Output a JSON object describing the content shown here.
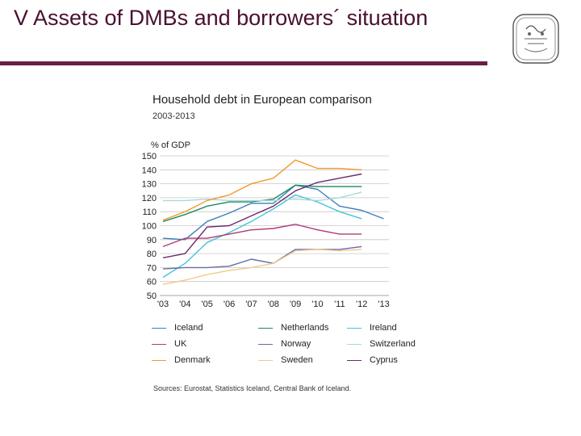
{
  "slide": {
    "title": "V Assets of DMBs and borrowers´ situation"
  },
  "chart_data": {
    "type": "line",
    "title": "Household debt in European comparison",
    "subtitle": "2003-2013",
    "ylabel": "% of GDP",
    "xlabel": "",
    "x": [
      "'03",
      "'04",
      "'05",
      "'06",
      "'07",
      "'08",
      "'09",
      "'10",
      "'11",
      "'12",
      "'13"
    ],
    "yticks": [
      50,
      60,
      70,
      80,
      90,
      100,
      110,
      120,
      130,
      140,
      150
    ],
    "ylim": [
      50,
      150
    ],
    "grid": true,
    "legend_position": "bottom",
    "series": [
      {
        "name": "Iceland",
        "color": "#3f7fb8",
        "values": [
          91,
          90,
          103,
          109,
          116,
          116,
          129,
          126,
          114,
          111,
          105
        ]
      },
      {
        "name": "Netherlands",
        "color": "#1a8c5e",
        "values": [
          103,
          108,
          114,
          117,
          117,
          119,
          129,
          128,
          128,
          128,
          null
        ]
      },
      {
        "name": "Ireland",
        "color": "#45c2d6",
        "values": [
          63,
          73,
          88,
          95,
          103,
          112,
          122,
          117,
          110,
          105,
          null
        ]
      },
      {
        "name": "UK",
        "color": "#b03a74",
        "values": [
          85,
          91,
          91,
          94,
          97,
          98,
          101,
          97,
          94,
          94,
          null
        ]
      },
      {
        "name": "Norway",
        "color": "#6a6aa8",
        "values": [
          69,
          70,
          70,
          71,
          76,
          73,
          83,
          83,
          83,
          85,
          null
        ]
      },
      {
        "name": "Switzerland",
        "color": "#a6d9d6",
        "values": [
          118,
          118,
          119,
          118,
          118,
          118,
          119,
          118,
          120,
          124,
          null
        ]
      },
      {
        "name": "Denmark",
        "color": "#f29a2e",
        "values": [
          104,
          110,
          118,
          122,
          130,
          134,
          147,
          141,
          141,
          140,
          null
        ]
      },
      {
        "name": "Sweden",
        "color": "#f3c98a",
        "values": [
          58,
          61,
          65,
          68,
          70,
          73,
          82,
          83,
          82,
          83,
          null
        ]
      },
      {
        "name": "Cyprus",
        "color": "#6b2a6e",
        "values": [
          77,
          80,
          99,
          100,
          107,
          114,
          125,
          131,
          134,
          137,
          null
        ]
      }
    ],
    "sources": "Sources: Eurostat, Statistics Iceland, Central Bank of Iceland."
  }
}
